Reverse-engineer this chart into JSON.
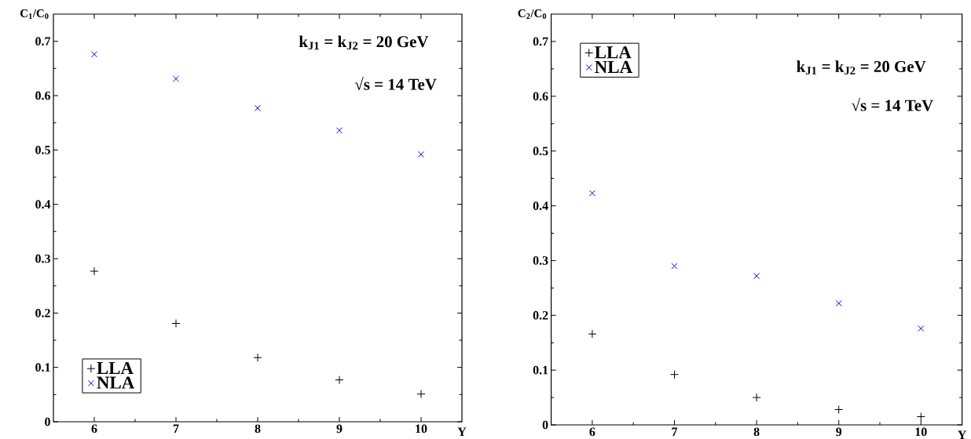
{
  "chart_data": [
    {
      "type": "scatter",
      "xlabel": "Y",
      "ylabel": "C$_{1}$/C$_{0}$",
      "x": [
        6,
        7,
        8,
        9,
        10
      ],
      "xlim": [
        5.5,
        10.5
      ],
      "xticks": [
        6,
        7,
        8,
        9,
        10
      ],
      "ylim": [
        0,
        0.75
      ],
      "yticks": [
        0,
        0.1,
        0.2,
        0.3,
        0.4,
        0.5,
        0.6,
        0.7
      ],
      "legend": "bottom left",
      "series": [
        {
          "name": "LLA",
          "color": "#000000",
          "marker": "plus",
          "values": [
            0.277,
            0.181,
            0.118,
            0.077,
            0.051
          ]
        },
        {
          "name": "NLA",
          "color": "#0000ff",
          "marker": "cross",
          "values": [
            0.676,
            0.631,
            0.577,
            0.536,
            0.492
          ]
        }
      ],
      "annotations": [
        "k$_{J1}$ = k$_{J2}$ = 20 GeV",
        "√s = 14 TeV"
      ]
    },
    {
      "type": "scatter",
      "xlabel": "Y",
      "ylabel": "C$_{2}$/C$_{0}$",
      "x": [
        6,
        7,
        8,
        9,
        10
      ],
      "xlim": [
        5.5,
        10.5
      ],
      "xticks": [
        6,
        7,
        8,
        9,
        10
      ],
      "ylim": [
        0,
        0.75
      ],
      "yticks": [
        0,
        0.1,
        0.2,
        0.3,
        0.4,
        0.5,
        0.6,
        0.7
      ],
      "legend": "top left",
      "series": [
        {
          "name": "LLA",
          "color": "#000000",
          "marker": "plus",
          "values": [
            0.166,
            0.092,
            0.05,
            0.028,
            0.015
          ]
        },
        {
          "name": "NLA",
          "color": "#0000ff",
          "marker": "cross",
          "values": [
            0.423,
            0.29,
            0.272,
            0.222,
            0.176
          ]
        }
      ],
      "annotations": [
        "k$_{J1}$ = k$_{J2}$ = 20 GeV",
        "√s = 14 TeV"
      ]
    }
  ]
}
